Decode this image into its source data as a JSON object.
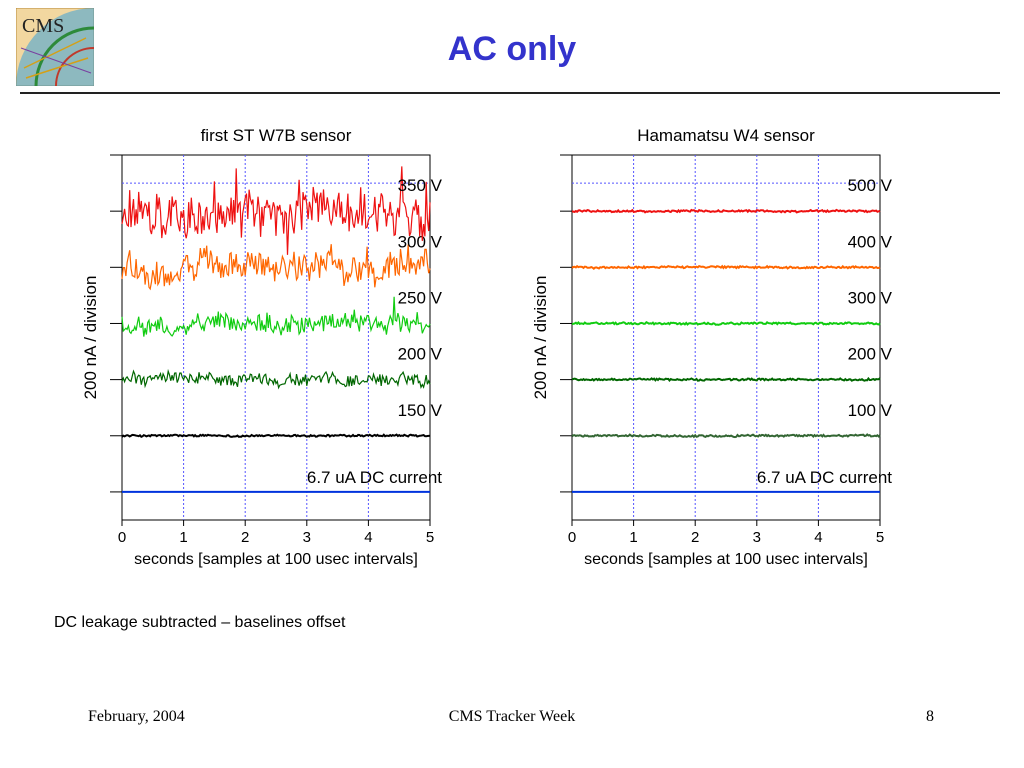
{
  "slide": {
    "title": "AC only",
    "logo_text": "CMS",
    "caption": "DC leakage subtracted – baselines offset",
    "footer": {
      "date": "February, 2004",
      "event": "CMS Tracker Week",
      "page": "8"
    }
  },
  "colors": {
    "title": "#3333cc",
    "grid": "#5555ff",
    "dc": "#0033dd",
    "black": "#000000",
    "dark_green": "#006600",
    "green": "#11cc11",
    "orange": "#ff6600",
    "red": "#ee1111"
  },
  "chart_data": [
    {
      "type": "line",
      "title": "first ST W7B sensor",
      "xlabel": "seconds [samples at 100 usec intervals]",
      "ylabel": "200 nA / division",
      "xlim": [
        0,
        5
      ],
      "x_ticks": [
        "0",
        "1",
        "2",
        "3",
        "4",
        "5"
      ],
      "ylim": [
        0,
        6.5
      ],
      "grid": true,
      "series": [
        {
          "name": "6.7 uA DC current",
          "baseline": 0.5,
          "noise": 0.0,
          "color": "#0033dd"
        },
        {
          "name": "150 V",
          "baseline": 1.5,
          "noise": 0.03,
          "color": "#000000"
        },
        {
          "name": "200 V",
          "baseline": 2.5,
          "noise": 0.2,
          "color": "#006600"
        },
        {
          "name": "250 V",
          "baseline": 3.5,
          "noise": 0.3,
          "color": "#11cc11"
        },
        {
          "name": "300 V",
          "baseline": 4.5,
          "noise": 0.45,
          "color": "#ff6600"
        },
        {
          "name": "350 V",
          "baseline": 5.5,
          "noise": 0.7,
          "color": "#ee1111"
        }
      ]
    },
    {
      "type": "line",
      "title": "Hamamatsu W4 sensor",
      "xlabel": "seconds [samples at 100 usec intervals]",
      "ylabel": "200 nA / division",
      "xlim": [
        0,
        5
      ],
      "x_ticks": [
        "0",
        "1",
        "2",
        "3",
        "4",
        "5"
      ],
      "ylim": [
        0,
        6.5
      ],
      "grid": true,
      "series": [
        {
          "name": "6.7 uA DC current",
          "baseline": 0.5,
          "noise": 0.0,
          "color": "#0033dd"
        },
        {
          "name": "100 V",
          "baseline": 1.5,
          "noise": 0.03,
          "color": "#336633"
        },
        {
          "name": "200 V",
          "baseline": 2.5,
          "noise": 0.03,
          "color": "#006600"
        },
        {
          "name": "300 V",
          "baseline": 3.5,
          "noise": 0.03,
          "color": "#11cc11"
        },
        {
          "name": "400 V",
          "baseline": 4.5,
          "noise": 0.03,
          "color": "#ff6600"
        },
        {
          "name": "500 V",
          "baseline": 5.5,
          "noise": 0.03,
          "color": "#ee1111"
        }
      ]
    }
  ]
}
